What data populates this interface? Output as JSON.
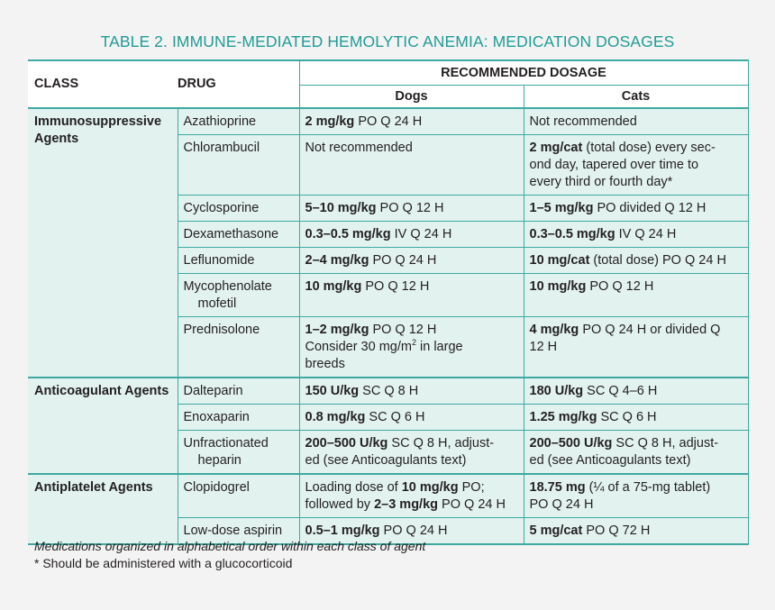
{
  "title": "TABLE 2. IMMUNE-MEDIATED HEMOLYTIC ANEMIA: MEDICATION DOSAGES",
  "headers": {
    "class": "CLASS",
    "drug": "DRUG",
    "recommended": "RECOMMENDED DOSAGE",
    "dogs": "Dogs",
    "cats": "Cats"
  },
  "rows": [
    {
      "class": "Immunosuppressive Agents",
      "drug": [
        "Azathioprine"
      ],
      "dogs": [
        [
          "b",
          "2 mg/kg"
        ],
        [
          "t",
          " PO Q 24 H"
        ]
      ],
      "cats": [
        [
          "t",
          "Not recommended"
        ]
      ]
    },
    {
      "drug": [
        "Chlorambucil"
      ],
      "dogs": [
        [
          "t",
          "Not recommended"
        ]
      ],
      "cats": [
        [
          "b",
          "2 mg/cat"
        ],
        [
          "t",
          " (total dose) every sec-"
        ],
        [
          "br"
        ],
        [
          "t",
          "ond day, tapered over time to"
        ],
        [
          "br"
        ],
        [
          "t",
          "every third or fourth day*"
        ]
      ]
    },
    {
      "drug": [
        "Cyclosporine"
      ],
      "dogs": [
        [
          "b",
          "5–10 mg/kg"
        ],
        [
          "t",
          " PO Q 12 H"
        ]
      ],
      "cats": [
        [
          "b",
          "1–5 mg/kg"
        ],
        [
          "t",
          " PO divided Q 12 H"
        ]
      ]
    },
    {
      "drug": [
        "Dexamethasone"
      ],
      "dogs": [
        [
          "b",
          "0.3–0.5 mg/kg"
        ],
        [
          "t",
          " IV Q 24 H"
        ]
      ],
      "cats": [
        [
          "b",
          "0.3–0.5 mg/kg"
        ],
        [
          "t",
          " IV Q 24 H"
        ]
      ]
    },
    {
      "drug": [
        "Leflunomide"
      ],
      "dogs": [
        [
          "b",
          "2–4 mg/kg"
        ],
        [
          "t",
          " PO Q 24 H"
        ]
      ],
      "cats": [
        [
          "b",
          "10 mg/cat"
        ],
        [
          "t",
          " (total dose) PO Q 24 H"
        ]
      ]
    },
    {
      "drug": [
        "Mycophenolate",
        "mofetil"
      ],
      "dogs": [
        [
          "b",
          "10 mg/kg"
        ],
        [
          "t",
          " PO Q 12 H"
        ]
      ],
      "cats": [
        [
          "b",
          "10 mg/kg"
        ],
        [
          "t",
          " PO Q 12 H"
        ]
      ]
    },
    {
      "drug": [
        "Prednisolone"
      ],
      "dogs": [
        [
          "b",
          "1–2 mg/kg"
        ],
        [
          "t",
          " PO Q 12 H"
        ],
        [
          "br"
        ],
        [
          "t",
          "Consider 30 mg/m"
        ],
        [
          "sup",
          "2"
        ],
        [
          "t",
          " in large"
        ],
        [
          "br"
        ],
        [
          "t",
          "breeds"
        ]
      ],
      "cats": [
        [
          "b",
          "4 mg/kg"
        ],
        [
          "t",
          " PO Q 24 H or divided Q"
        ],
        [
          "br"
        ],
        [
          "t",
          "12 H"
        ]
      ]
    },
    {
      "class": "Anticoagulant Agents",
      "drug": [
        "Dalteparin"
      ],
      "dogs": [
        [
          "b",
          "150 U/kg"
        ],
        [
          "t",
          " SC Q 8 H"
        ]
      ],
      "cats": [
        [
          "b",
          "180 U/kg"
        ],
        [
          "t",
          " SC Q 4–6 H"
        ]
      ]
    },
    {
      "drug": [
        "Enoxaparin"
      ],
      "dogs": [
        [
          "b",
          "0.8 mg/kg"
        ],
        [
          "t",
          " SC Q 6 H"
        ]
      ],
      "cats": [
        [
          "b",
          "1.25 mg/kg"
        ],
        [
          "t",
          " SC Q 6 H"
        ]
      ]
    },
    {
      "drug": [
        "Unfractionated",
        "heparin"
      ],
      "dogs": [
        [
          "b",
          "200–500 U/kg"
        ],
        [
          "t",
          " SC Q 8 H, adjust-"
        ],
        [
          "br"
        ],
        [
          "t",
          "ed (see Anticoagulants text)"
        ]
      ],
      "cats": [
        [
          "b",
          "200–500 U/kg"
        ],
        [
          "t",
          " SC Q 8 H, adjust-"
        ],
        [
          "br"
        ],
        [
          "t",
          "ed (see Anticoagulants text)"
        ]
      ]
    },
    {
      "class": "Antiplatelet Agents",
      "drug": [
        "Clopidogrel"
      ],
      "dogs": [
        [
          "t",
          "Loading dose of "
        ],
        [
          "b",
          "10 mg/kg"
        ],
        [
          "t",
          " PO;"
        ],
        [
          "br"
        ],
        [
          "t",
          "followed by "
        ],
        [
          "b",
          "2–3 mg/kg"
        ],
        [
          "t",
          " PO Q 24 H"
        ]
      ],
      "cats": [
        [
          "b",
          "18.75 mg"
        ],
        [
          "t",
          " (¼ of a 75-mg tablet)"
        ],
        [
          "br"
        ],
        [
          "t",
          "PO Q 24 H"
        ]
      ]
    },
    {
      "drug": [
        "Low-dose aspirin"
      ],
      "dogs": [
        [
          "b",
          "0.5–1 mg/kg"
        ],
        [
          "t",
          " PO Q 24 H"
        ]
      ],
      "cats": [
        [
          "b",
          "5 mg/cat"
        ],
        [
          "t",
          " PO Q 72 H"
        ]
      ]
    }
  ],
  "footnotes": [
    "Medications organized in alphabetical order within each class of agent",
    "* Should be administered with a glucocorticoid"
  ]
}
